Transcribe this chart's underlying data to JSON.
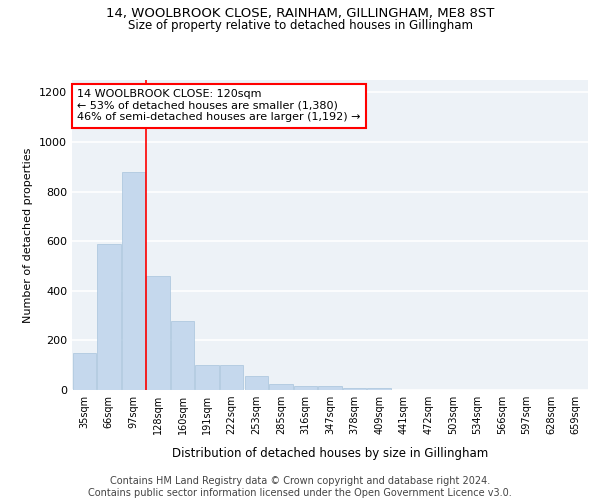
{
  "title1": "14, WOOLBROOK CLOSE, RAINHAM, GILLINGHAM, ME8 8ST",
  "title2": "Size of property relative to detached houses in Gillingham",
  "xlabel": "Distribution of detached houses by size in Gillingham",
  "ylabel": "Number of detached properties",
  "categories": [
    "35sqm",
    "66sqm",
    "97sqm",
    "128sqm",
    "160sqm",
    "191sqm",
    "222sqm",
    "253sqm",
    "285sqm",
    "316sqm",
    "347sqm",
    "378sqm",
    "409sqm",
    "441sqm",
    "472sqm",
    "503sqm",
    "534sqm",
    "566sqm",
    "597sqm",
    "628sqm",
    "659sqm"
  ],
  "values": [
    150,
    590,
    880,
    460,
    280,
    100,
    100,
    55,
    25,
    18,
    15,
    10,
    10,
    0,
    0,
    0,
    0,
    0,
    0,
    0,
    0
  ],
  "bar_color": "#c5d8ed",
  "bar_edge_color": "#a8c4dc",
  "annotation_text": "14 WOOLBROOK CLOSE: 120sqm\n← 53% of detached houses are smaller (1,380)\n46% of semi-detached houses are larger (1,192) →",
  "annotation_box_color": "white",
  "annotation_box_edgecolor": "red",
  "annotation_fontsize": 8,
  "ylim": [
    0,
    1250
  ],
  "yticks": [
    0,
    200,
    400,
    600,
    800,
    1000,
    1200
  ],
  "background_color": "#edf2f7",
  "grid_color": "white",
  "title1_fontsize": 9.5,
  "title2_fontsize": 8.5,
  "footer_text": "Contains HM Land Registry data © Crown copyright and database right 2024.\nContains public sector information licensed under the Open Government Licence v3.0.",
  "footer_fontsize": 7.0,
  "red_line_x": 2.5
}
